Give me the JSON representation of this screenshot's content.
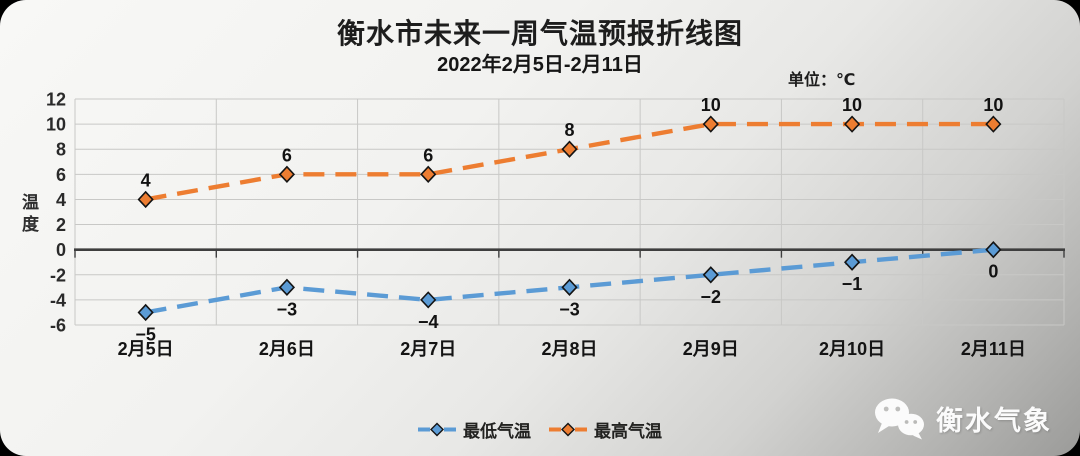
{
  "title": "衡水市未来一周气温预报折线图",
  "subtitle": "2022年2月5日-2月11日",
  "unit_label": "单位：℃",
  "y_axis_title": "温度",
  "watermark": {
    "text": "衡水气象"
  },
  "legend": [
    {
      "label": "最低气温",
      "color": "#5B9BD5"
    },
    {
      "label": "最高气温",
      "color": "#ED7D31"
    }
  ],
  "chart_data": {
    "type": "line",
    "title": "衡水市未来一周气温预报折线图",
    "subtitle": "2022年2月5日-2月11日",
    "unit": "℃",
    "ylabel": "温度",
    "x": [
      "2月5日",
      "2月6日",
      "2月7日",
      "2月8日",
      "2月9日",
      "2月10日",
      "2月11日"
    ],
    "series": [
      {
        "id": "min-temp",
        "name": "最低气温",
        "color": "#5B9BD5",
        "values": [
          -5,
          -3,
          -4,
          -3,
          -2,
          -1,
          0
        ],
        "labels": [
          "−5",
          "−3",
          "−4",
          "−3",
          "−2",
          "−1",
          "0"
        ],
        "label_position": "below"
      },
      {
        "id": "max-temp",
        "name": "最高气温",
        "color": "#ED7D31",
        "values": [
          4,
          6,
          6,
          8,
          10,
          10,
          10
        ],
        "labels": [
          "4",
          "6",
          "6",
          "8",
          "10",
          "10",
          "10"
        ],
        "label_position": "above"
      }
    ],
    "ylim": [
      -6,
      12
    ],
    "y_ticks": [
      12,
      10,
      8,
      6,
      4,
      2,
      0,
      -2,
      -4,
      -6
    ],
    "grid": true,
    "line_style": "dashed",
    "marker": "diamond",
    "legend_position": "bottom"
  }
}
